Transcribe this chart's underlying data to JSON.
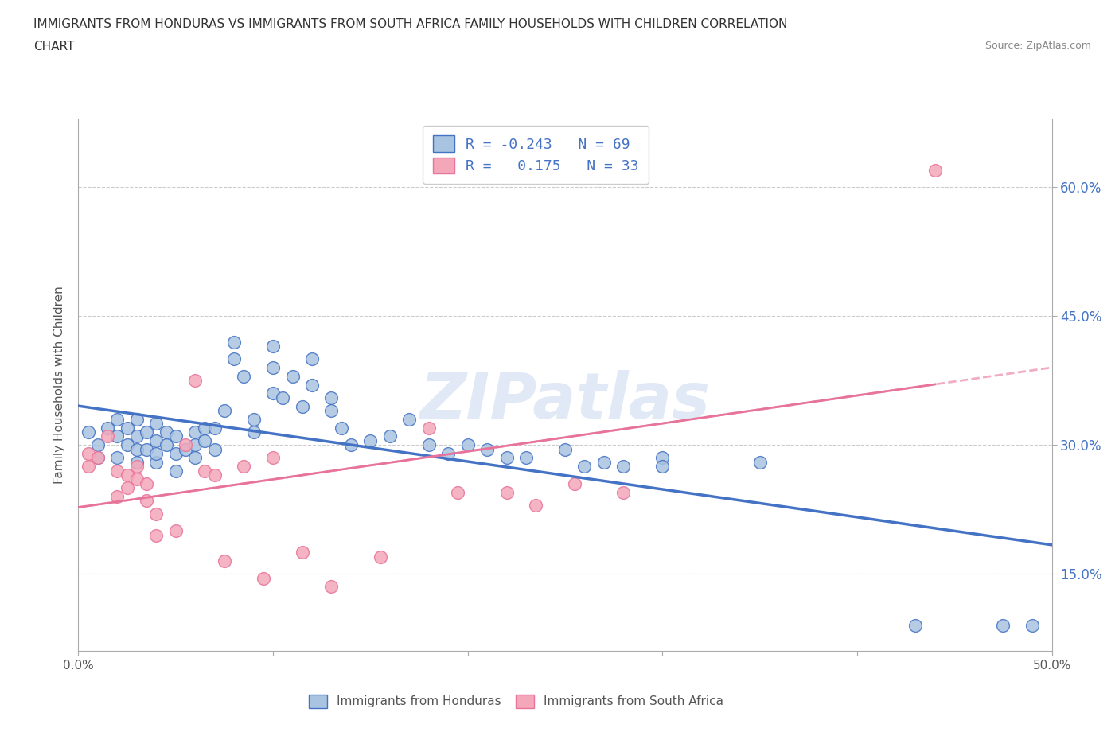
{
  "title_line1": "IMMIGRANTS FROM HONDURAS VS IMMIGRANTS FROM SOUTH AFRICA FAMILY HOUSEHOLDS WITH CHILDREN CORRELATION",
  "title_line2": "CHART",
  "source": "Source: ZipAtlas.com",
  "ylabel": "Family Households with Children",
  "xlim": [
    0.0,
    0.5
  ],
  "ylim": [
    0.06,
    0.68
  ],
  "yticks": [
    0.15,
    0.3,
    0.45,
    0.6
  ],
  "ytick_labels": [
    "15.0%",
    "30.0%",
    "45.0%",
    "60.0%"
  ],
  "xticks": [
    0.0,
    0.1,
    0.2,
    0.3,
    0.4,
    0.5
  ],
  "xtick_labels": [
    "0.0%",
    "",
    "",
    "",
    "",
    "50.0%"
  ],
  "watermark": "ZIPatlas",
  "blue_color": "#a8c4e0",
  "pink_color": "#f4a7b9",
  "blue_line_color": "#4472c4",
  "pink_line_color": "#e8739a",
  "legend_text_color": "#4472c4",
  "R_blue": -0.243,
  "N_blue": 69,
  "R_pink": 0.175,
  "N_pink": 33,
  "legend_label_blue": "Immigrants from Honduras",
  "legend_label_pink": "Immigrants from South Africa",
  "blue_x": [
    0.005,
    0.01,
    0.01,
    0.015,
    0.02,
    0.02,
    0.02,
    0.025,
    0.025,
    0.03,
    0.03,
    0.03,
    0.03,
    0.035,
    0.035,
    0.04,
    0.04,
    0.04,
    0.04,
    0.045,
    0.045,
    0.05,
    0.05,
    0.05,
    0.055,
    0.06,
    0.06,
    0.06,
    0.065,
    0.065,
    0.07,
    0.07,
    0.075,
    0.08,
    0.08,
    0.085,
    0.09,
    0.09,
    0.1,
    0.1,
    0.1,
    0.105,
    0.11,
    0.115,
    0.12,
    0.12,
    0.13,
    0.13,
    0.135,
    0.14,
    0.15,
    0.16,
    0.17,
    0.18,
    0.19,
    0.2,
    0.21,
    0.22,
    0.23,
    0.25,
    0.26,
    0.27,
    0.28,
    0.3,
    0.3,
    0.35,
    0.43,
    0.475,
    0.49
  ],
  "blue_y": [
    0.315,
    0.285,
    0.3,
    0.32,
    0.285,
    0.31,
    0.33,
    0.3,
    0.32,
    0.28,
    0.295,
    0.31,
    0.33,
    0.295,
    0.315,
    0.28,
    0.29,
    0.305,
    0.325,
    0.3,
    0.315,
    0.27,
    0.29,
    0.31,
    0.295,
    0.285,
    0.3,
    0.315,
    0.305,
    0.32,
    0.295,
    0.32,
    0.34,
    0.4,
    0.42,
    0.38,
    0.315,
    0.33,
    0.36,
    0.39,
    0.415,
    0.355,
    0.38,
    0.345,
    0.4,
    0.37,
    0.34,
    0.355,
    0.32,
    0.3,
    0.305,
    0.31,
    0.33,
    0.3,
    0.29,
    0.3,
    0.295,
    0.285,
    0.285,
    0.295,
    0.275,
    0.28,
    0.275,
    0.285,
    0.275,
    0.28,
    0.09,
    0.09,
    0.09
  ],
  "pink_x": [
    0.005,
    0.005,
    0.01,
    0.015,
    0.02,
    0.02,
    0.025,
    0.025,
    0.03,
    0.03,
    0.035,
    0.035,
    0.04,
    0.04,
    0.05,
    0.055,
    0.06,
    0.065,
    0.07,
    0.075,
    0.085,
    0.095,
    0.1,
    0.115,
    0.13,
    0.155,
    0.18,
    0.195,
    0.22,
    0.235,
    0.255,
    0.28,
    0.44
  ],
  "pink_y": [
    0.29,
    0.275,
    0.285,
    0.31,
    0.24,
    0.27,
    0.265,
    0.25,
    0.275,
    0.26,
    0.255,
    0.235,
    0.22,
    0.195,
    0.2,
    0.3,
    0.375,
    0.27,
    0.265,
    0.165,
    0.275,
    0.145,
    0.285,
    0.175,
    0.135,
    0.17,
    0.32,
    0.245,
    0.245,
    0.23,
    0.255,
    0.245,
    0.62
  ]
}
